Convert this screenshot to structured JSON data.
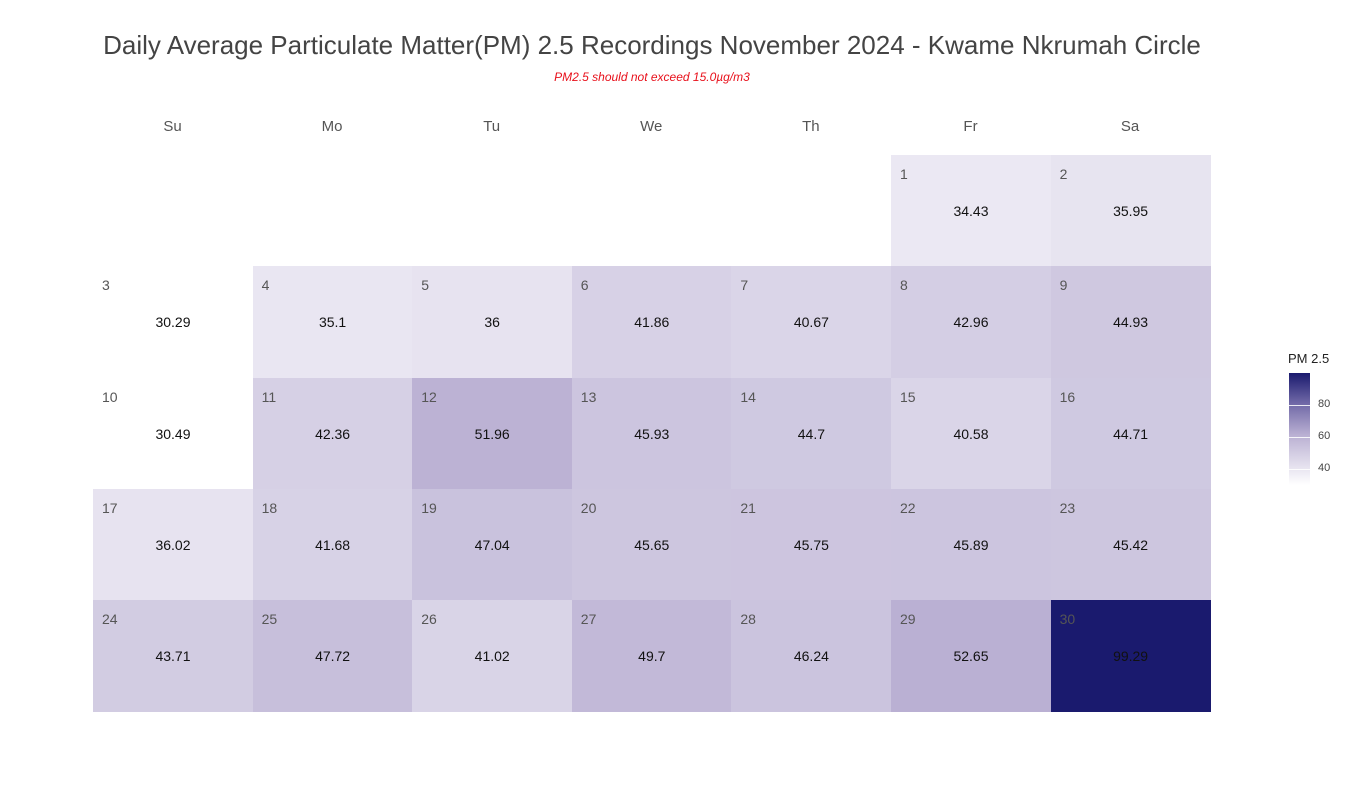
{
  "chart_data": {
    "type": "heatmap",
    "title": "Daily Average Particulate Matter(PM) 2.5 Recordings November 2024 -  Kwame Nkrumah Circle",
    "subtitle": "PM2.5 should not exceed 15.0µg/m3",
    "weekdays": [
      "Su",
      "Mo",
      "Tu",
      "We",
      "Th",
      "Fr",
      "Sa"
    ],
    "first_weekday_index": 5,
    "days": [
      1,
      2,
      3,
      4,
      5,
      6,
      7,
      8,
      9,
      10,
      11,
      12,
      13,
      14,
      15,
      16,
      17,
      18,
      19,
      20,
      21,
      22,
      23,
      24,
      25,
      26,
      27,
      28,
      29,
      30
    ],
    "values": [
      34.43,
      35.95,
      30.29,
      35.1,
      36,
      41.86,
      40.67,
      42.96,
      44.93,
      30.49,
      42.36,
      51.96,
      45.93,
      44.7,
      40.58,
      44.71,
      36.02,
      41.68,
      47.04,
      45.65,
      45.75,
      45.89,
      45.42,
      43.71,
      47.72,
      41.02,
      49.7,
      46.24,
      52.65,
      99.29
    ],
    "value_labels": [
      "34.43",
      "35.95",
      "30.29",
      "35.1",
      "36",
      "41.86",
      "40.67",
      "42.96",
      "44.93",
      "30.49",
      "42.36",
      "51.96",
      "45.93",
      "44.7",
      "40.58",
      "44.71",
      "36.02",
      "41.68",
      "47.04",
      "45.65",
      "45.75",
      "45.89",
      "45.42",
      "43.71",
      "47.72",
      "41.02",
      "49.7",
      "46.24",
      "52.65",
      "99.29"
    ],
    "legend": {
      "title": "PM 2.5",
      "ticks": [
        40,
        60,
        80
      ],
      "range": [
        30.29,
        99.29
      ],
      "low_color": "#ffffff",
      "high_color": "#1a1a6e"
    }
  }
}
